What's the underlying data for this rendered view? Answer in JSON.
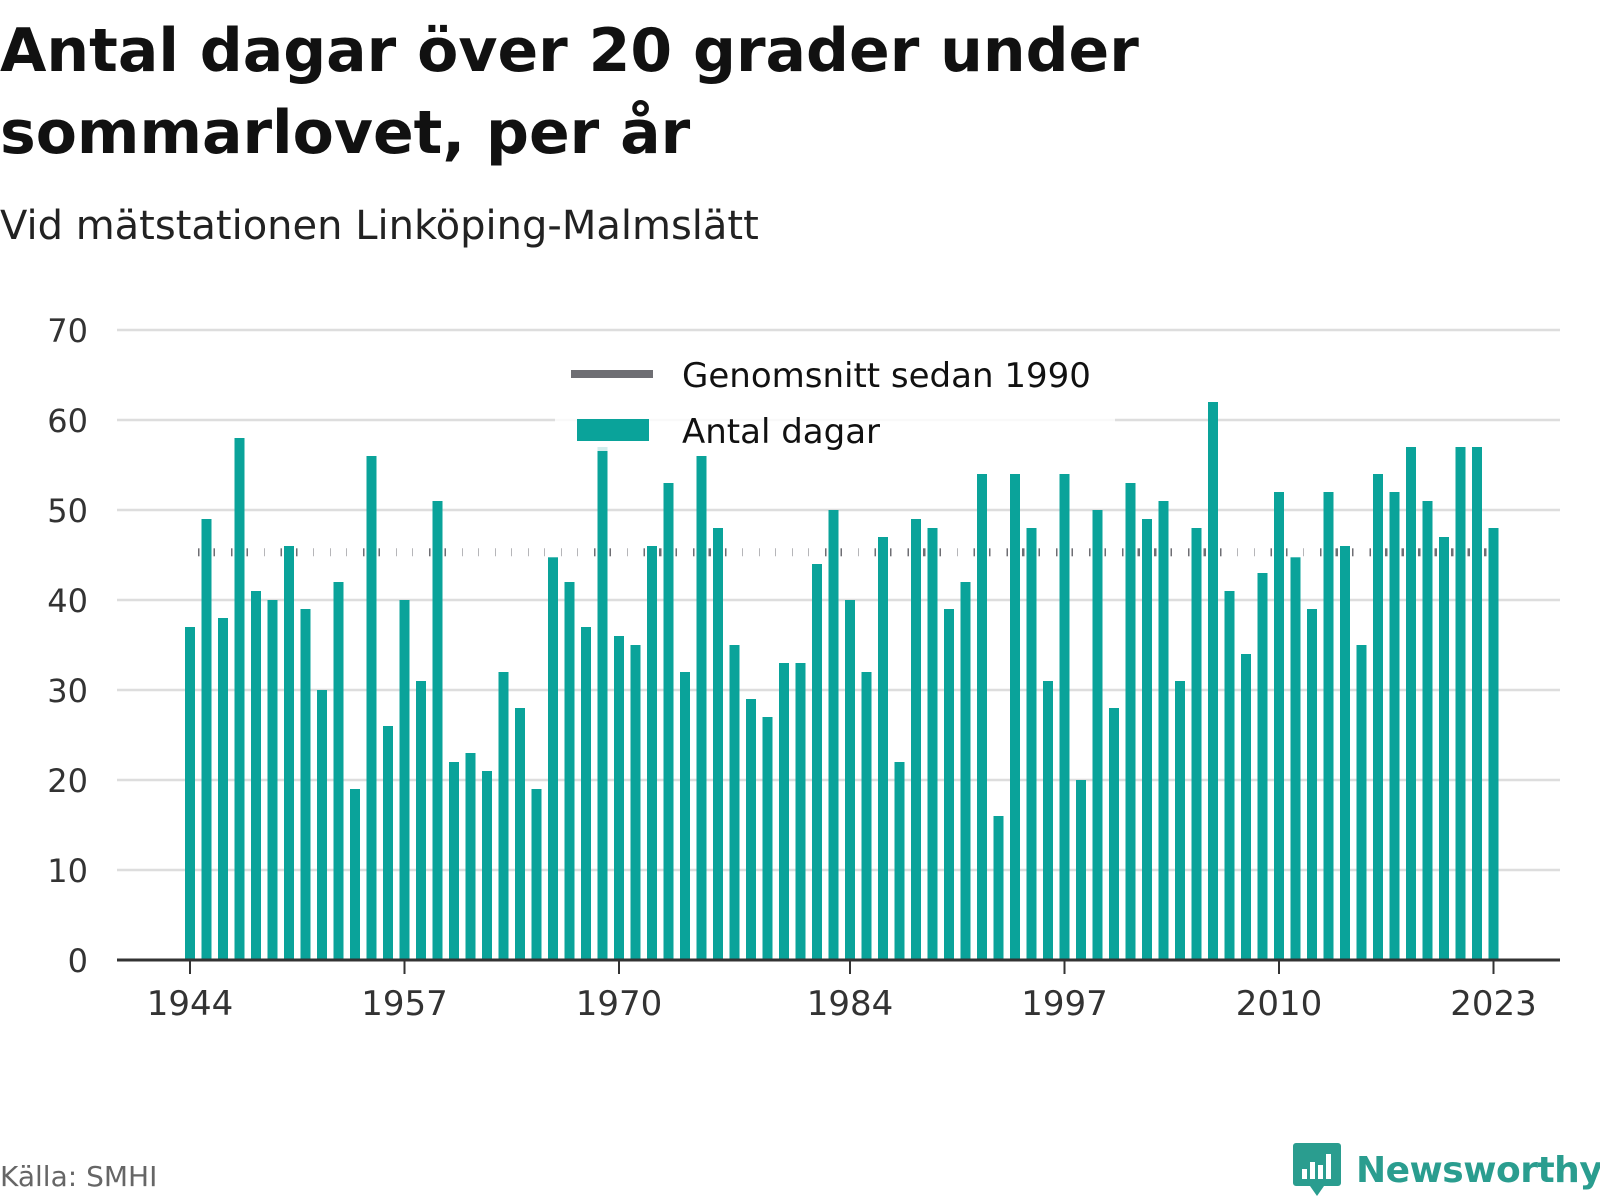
{
  "title": "Antal dagar över 20 grader under sommarlovet, per år",
  "subtitle": "Vid mätstationen Linköping-Malmslätt",
  "source": "Källa: SMHI",
  "brand": {
    "name": "Newsworthy",
    "icon": "bar-chart-speech-bubble-icon"
  },
  "colors": {
    "bars": "#0aa39a",
    "average_line": "#6e6e73",
    "grid": "#dddddd",
    "axis": "#333333",
    "brand": "#2a9d8f"
  },
  "legend": [
    {
      "label": "Genomsnitt sedan 1990",
      "kind": "line",
      "color": "#6e6e73"
    },
    {
      "label": "Antal dagar",
      "kind": "bar",
      "color": "#0aa39a"
    }
  ],
  "chart_data": {
    "type": "bar",
    "x": [
      1944,
      1945,
      1946,
      1947,
      1948,
      1949,
      1950,
      1951,
      1952,
      1953,
      1954,
      1955,
      1956,
      1957,
      1958,
      1959,
      1960,
      1961,
      1962,
      1963,
      1964,
      1965,
      1966,
      1967,
      1968,
      1969,
      1970,
      1971,
      1972,
      1973,
      1974,
      1975,
      1976,
      1977,
      1978,
      1979,
      1980,
      1981,
      1982,
      1983,
      1984,
      1985,
      1986,
      1987,
      1988,
      1989,
      1990,
      1991,
      1992,
      1993,
      1994,
      1995,
      1996,
      1997,
      1998,
      1999,
      2000,
      2001,
      2002,
      2003,
      2004,
      2005,
      2006,
      2007,
      2008,
      2009,
      2010,
      2011,
      2012,
      2013,
      2014,
      2015,
      2016,
      2017,
      2018,
      2019,
      2020,
      2021,
      2022,
      2023
    ],
    "series": [
      {
        "name": "Antal dagar",
        "values": [
          37,
          49,
          38,
          58,
          41,
          40,
          46,
          39,
          30,
          42,
          19,
          56,
          26,
          40,
          31,
          51,
          22,
          23,
          21,
          32,
          28,
          19,
          45,
          42,
          37,
          57,
          36,
          35,
          46,
          53,
          32,
          56,
          48,
          35,
          29,
          27,
          33,
          33,
          44,
          50,
          40,
          32,
          47,
          22,
          49,
          48,
          39,
          42,
          54,
          16,
          54,
          48,
          31,
          54,
          20,
          50,
          28,
          53,
          49,
          51,
          31,
          48,
          62,
          41,
          34,
          43,
          52,
          45,
          39,
          52,
          46,
          35,
          54,
          52,
          57,
          51,
          47,
          57,
          57,
          48
        ]
      },
      {
        "name": "Genomsnitt sedan 1990",
        "kind": "reference-line",
        "value": 45.3
      }
    ],
    "x_tick_labels": [
      "1944",
      "1957",
      "1970",
      "1984",
      "1997",
      "2010",
      "2023"
    ],
    "y_tick_labels": [
      "0",
      "10",
      "20",
      "30",
      "40",
      "50",
      "60",
      "70"
    ],
    "ylim": [
      0,
      70
    ],
    "grid": true,
    "legend_position": "top-center"
  }
}
